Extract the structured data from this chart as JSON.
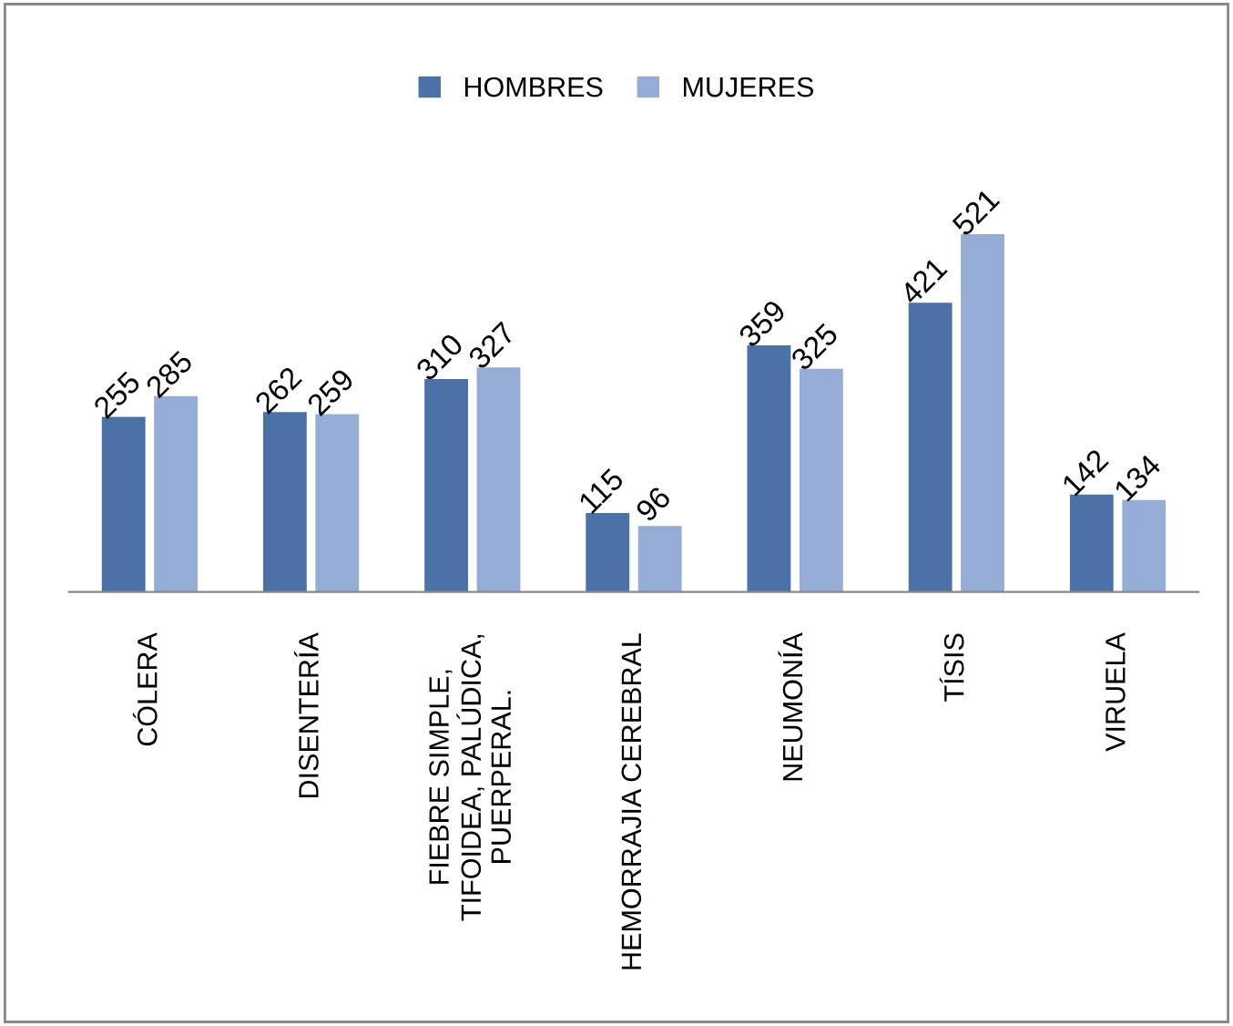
{
  "chart_data": {
    "type": "bar",
    "categories": [
      "CÓLERA",
      "DISENTERÍA",
      "FIEBRE SIMPLE,\nTIFOIDEA, PALÚDICA,\nPUERPERAL.",
      "HEMORRAJIA CEREBRAL",
      "NEUMONÍA",
      "TÍSIS",
      "VIRUELA"
    ],
    "series": [
      {
        "name": "HOMBRES",
        "color": "#4a71a8",
        "values": [
          255,
          262,
          310,
          115,
          359,
          421,
          142
        ]
      },
      {
        "name": "MUJERES",
        "color": "#95add6",
        "values": [
          285,
          259,
          327,
          96,
          325,
          521,
          134
        ]
      }
    ],
    "data_labels": true,
    "legend": "top",
    "grid": false
  }
}
